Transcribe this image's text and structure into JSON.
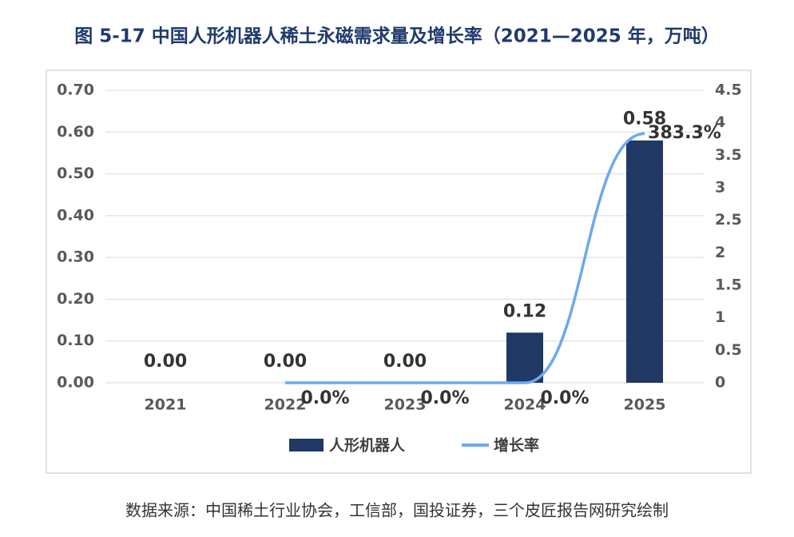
{
  "chart_data": {
    "type": "bar",
    "title": "图 5-17 中国人形机器人稀土永磁需求量及增长率（2021—2025 年，万吨）",
    "source": "数据来源：中国稀土行业协会，工信部，国投证券，三个皮匠报告网研究绘制",
    "categories": [
      "2021",
      "2022",
      "2023",
      "2024",
      "2025"
    ],
    "series": [
      {
        "name": "人形机器人",
        "type": "bar",
        "color": "#1f3864",
        "values": [
          0,
          0,
          0,
          0.12,
          0.58
        ],
        "value_labels": [
          "0.00",
          "0.00",
          "0.00",
          "0.12",
          "0.58"
        ]
      },
      {
        "name": "增长率",
        "type": "line",
        "axis": "y2",
        "color": "#6aaaf0",
        "values": [
          null,
          0,
          0,
          0,
          3.833
        ],
        "value_labels": [
          null,
          "0.0%",
          "0.0%",
          "0.0%",
          "383.3%"
        ]
      }
    ],
    "ylim": [
      0,
      0.7
    ],
    "yticks": [
      {
        "value": 0,
        "label": "0.00"
      },
      {
        "value": 0.1,
        "label": "0.10"
      },
      {
        "value": 0.2,
        "label": "0.20"
      },
      {
        "value": 0.3,
        "label": "0.30"
      },
      {
        "value": 0.4,
        "label": "0.40"
      },
      {
        "value": 0.5,
        "label": "0.50"
      },
      {
        "value": 0.6,
        "label": "0.60"
      },
      {
        "value": 0.7,
        "label": "0.70"
      }
    ],
    "y2lim": [
      0,
      4.5
    ],
    "y2ticks": [
      0,
      0.5,
      1,
      1.5,
      2,
      2.5,
      3,
      3.5,
      4,
      4.5
    ],
    "grid": true,
    "legend": "bottom"
  }
}
